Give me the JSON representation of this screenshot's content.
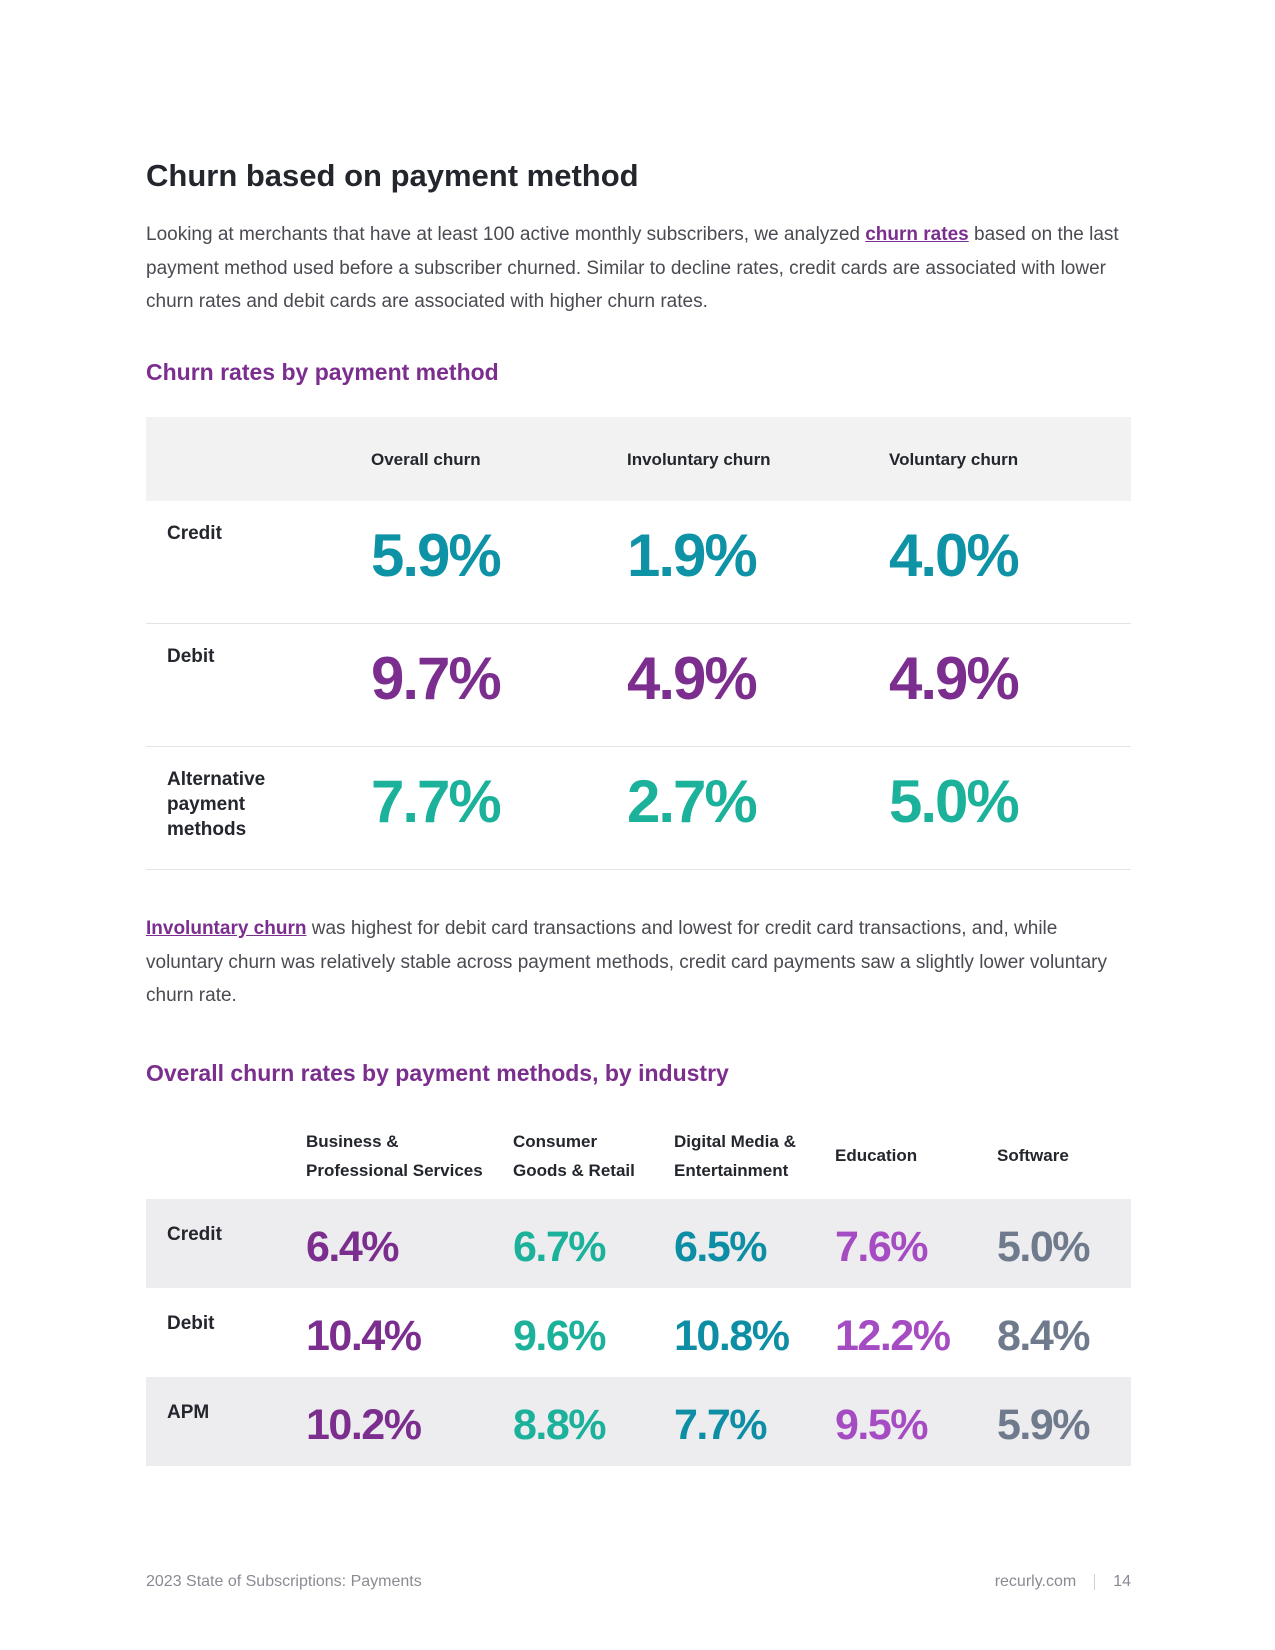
{
  "heading": "Churn based on payment method",
  "intro": {
    "before": "Looking at merchants that have at least 100 active monthly subscribers, we analyzed ",
    "link": "churn rates",
    "after": " based on the last payment method used before a subscriber churned. Similar to decline rates, credit cards are associated with lower churn rates and debit cards are associated with higher churn rates."
  },
  "table1": {
    "title": "Churn rates by payment method",
    "columns": [
      "Overall churn",
      "Involuntary churn",
      "Voluntary churn"
    ],
    "rows": [
      {
        "label": "Credit",
        "values": [
          "5.9%",
          "1.9%",
          "4.0%"
        ],
        "color": "#0e93a6"
      },
      {
        "label": "Debit",
        "values": [
          "9.7%",
          "4.9%",
          "4.9%"
        ],
        "color": "#7b2e8e"
      },
      {
        "label": "Alternative payment methods",
        "values": [
          "7.7%",
          "2.7%",
          "5.0%"
        ],
        "color": "#1bb19a"
      }
    ]
  },
  "middle_text": {
    "link": "Involuntary churn",
    "after": " was highest for debit card transactions and lowest for credit card transactions, and, while voluntary churn was relatively stable across payment methods, credit card payments saw a slightly lower voluntary churn rate."
  },
  "table2": {
    "title": "Overall churn rates by payment methods, by industry",
    "columns": [
      {
        "line1": "Business &",
        "line2": "Professional Services"
      },
      {
        "line1": "Consumer",
        "line2": "Goods & Retail"
      },
      {
        "line1": "Digital Media &",
        "line2": "Entertainment"
      },
      {
        "line1": "Education",
        "line2": ""
      },
      {
        "line1": "Software",
        "line2": ""
      }
    ],
    "column_colors": [
      "#7b2e8e",
      "#1bb19a",
      "#0e8ea5",
      "#a64cc3",
      "#6f7a8c"
    ],
    "rows": [
      {
        "label": "Credit",
        "values": [
          "6.4%",
          "6.7%",
          "6.5%",
          "7.6%",
          "5.0%"
        ]
      },
      {
        "label": "Debit",
        "values": [
          "10.4%",
          "9.6%",
          "10.8%",
          "12.2%",
          "8.4%"
        ]
      },
      {
        "label": "APM",
        "values": [
          "10.2%",
          "8.8%",
          "7.7%",
          "9.5%",
          "5.9%"
        ]
      }
    ]
  },
  "footer": {
    "left": "2023 State of Subscriptions: Payments",
    "site": "recurly.com",
    "page": "14"
  }
}
